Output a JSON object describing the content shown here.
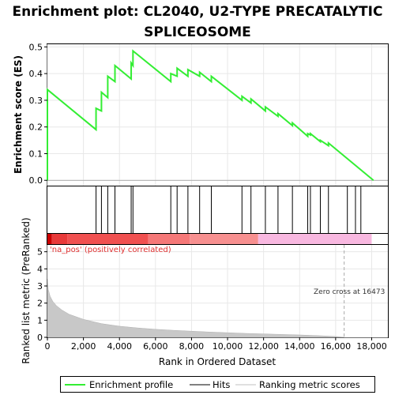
{
  "chart_data": {
    "type": "line",
    "title_line1": "Enrichment plot: CL2040, U2-TYPE PRECATALYTIC",
    "title_line2": "SPLICEOSOME",
    "es_panel": {
      "ylabel": "Enrichment score (ES)",
      "ylim": [
        -0.02,
        0.51
      ],
      "yticks": [
        "0.0",
        "0.1",
        "0.2",
        "0.3",
        "0.4",
        "0.5"
      ],
      "ytick_values": [
        0.0,
        0.1,
        0.2,
        0.3,
        0.4,
        0.5
      ]
    },
    "xlim": [
      0,
      18900
    ],
    "xticks": [
      "0",
      "2,000",
      "4,000",
      "6,000",
      "8,000",
      "10,000",
      "12,000",
      "14,000",
      "16,000",
      "18,000"
    ],
    "xtick_values": [
      0,
      2000,
      4000,
      6000,
      8000,
      10000,
      12000,
      14000,
      16000,
      18000
    ],
    "es_curve": [
      [
        0,
        0.0
      ],
      [
        0,
        0.34
      ],
      [
        2700,
        0.19
      ],
      [
        2700,
        0.27
      ],
      [
        3000,
        0.26
      ],
      [
        3000,
        0.33
      ],
      [
        3350,
        0.31
      ],
      [
        3350,
        0.39
      ],
      [
        3750,
        0.37
      ],
      [
        3750,
        0.43
      ],
      [
        4650,
        0.38
      ],
      [
        4650,
        0.44
      ],
      [
        4750,
        0.43
      ],
      [
        4750,
        0.485
      ],
      [
        6850,
        0.37
      ],
      [
        6850,
        0.4
      ],
      [
        7200,
        0.39
      ],
      [
        7200,
        0.42
      ],
      [
        7800,
        0.39
      ],
      [
        7800,
        0.415
      ],
      [
        8450,
        0.39
      ],
      [
        8450,
        0.405
      ],
      [
        9100,
        0.37
      ],
      [
        9100,
        0.39
      ],
      [
        10800,
        0.3
      ],
      [
        10800,
        0.315
      ],
      [
        11300,
        0.29
      ],
      [
        11300,
        0.305
      ],
      [
        12100,
        0.26
      ],
      [
        12100,
        0.275
      ],
      [
        12800,
        0.24
      ],
      [
        12800,
        0.25
      ],
      [
        13600,
        0.205
      ],
      [
        13600,
        0.215
      ],
      [
        14450,
        0.165
      ],
      [
        14450,
        0.175
      ],
      [
        14600,
        0.17
      ],
      [
        14600,
        0.175
      ],
      [
        15150,
        0.145
      ],
      [
        15150,
        0.15
      ],
      [
        15600,
        0.13
      ],
      [
        15600,
        0.14
      ],
      [
        18100,
        0.0
      ]
    ],
    "hits": [
      2700,
      3000,
      3350,
      3750,
      4650,
      4750,
      6850,
      7200,
      7800,
      8450,
      9100,
      10800,
      11300,
      12100,
      12800,
      13600,
      14450,
      14600,
      15150,
      15600,
      16650,
      17100,
      17400
    ],
    "rank_bands": [
      {
        "from": 0,
        "to": 250,
        "color": "#cc0000"
      },
      {
        "from": 250,
        "to": 1100,
        "color": "#e83a3a"
      },
      {
        "from": 1100,
        "to": 5600,
        "color": "#f05050"
      },
      {
        "from": 5600,
        "to": 7900,
        "color": "#f57878"
      },
      {
        "from": 7900,
        "to": 11700,
        "color": "#f79090"
      },
      {
        "from": 11700,
        "to": 18000,
        "color": "#f8b8e0"
      }
    ],
    "metric_panel": {
      "ylabel": "Ranked list metric (PreRanked)",
      "ylim": [
        0,
        5.4
      ],
      "yticks": [
        "0",
        "1",
        "2",
        "3",
        "4",
        "5"
      ],
      "ytick_values": [
        0,
        1,
        2,
        3,
        4,
        5
      ],
      "xlabel": "Rank in Ordered Dataset",
      "pos_label": "'na_pos' (positively correlated)",
      "zero_cross_label": "Zero cross at 16473",
      "zero_cross": 16473,
      "metric_curve": [
        [
          0,
          3.4
        ],
        [
          50,
          2.8
        ],
        [
          150,
          2.4
        ],
        [
          300,
          2.1
        ],
        [
          500,
          1.85
        ],
        [
          800,
          1.6
        ],
        [
          1200,
          1.35
        ],
        [
          2000,
          1.05
        ],
        [
          3000,
          0.8
        ],
        [
          4000,
          0.65
        ],
        [
          5000,
          0.55
        ],
        [
          6000,
          0.47
        ],
        [
          7000,
          0.41
        ],
        [
          8000,
          0.36
        ],
        [
          9000,
          0.31
        ],
        [
          10000,
          0.27
        ],
        [
          11000,
          0.23
        ],
        [
          12000,
          0.2
        ],
        [
          13000,
          0.17
        ],
        [
          14000,
          0.14
        ],
        [
          15000,
          0.1
        ],
        [
          16000,
          0.05
        ],
        [
          16473,
          0.0
        ]
      ]
    },
    "legend": {
      "entries": [
        {
          "label": "Enrichment profile",
          "color": "#33ee33"
        },
        {
          "label": "Hits",
          "color": "#000000"
        },
        {
          "label": "Ranking metric scores",
          "color": "#c0c0c0"
        }
      ]
    }
  }
}
